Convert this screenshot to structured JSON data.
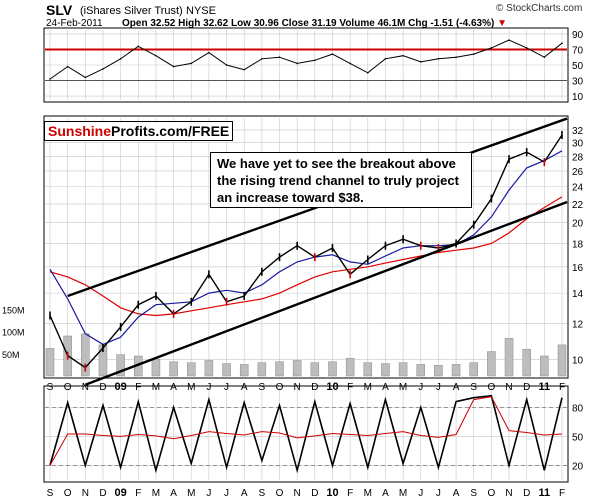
{
  "header": {
    "symbol": "SLV",
    "name": "(iShares Silver Trust)",
    "exchange": "NYSE",
    "date": "24-Feb-2011",
    "open_label": "Open",
    "open": "32.52",
    "high_label": "High",
    "high": "32.62",
    "low_label": "Low",
    "low": "30.96",
    "close_label": "Close",
    "close": "31.19",
    "volume_label": "Volume",
    "volume": "46.1M",
    "chg_label": "Chg",
    "chg": "-1.51 (-4.63%)",
    "watermark": "© StockCharts.com"
  },
  "logo": {
    "part1": "Sunshine",
    "part2": " Profits.com/FREE"
  },
  "annotation": {
    "line1": "We have yet to see the breakout above",
    "line2": "the rising trend channel to truly project",
    "line3": "an increase toward $38."
  },
  "colors": {
    "accent": "#cc0000",
    "ma_short": "#1a1aa0",
    "ma_long": "#e00000",
    "price_up": "#000000",
    "price_down": "#cc0000"
  },
  "chart_data": [
    {
      "type": "line",
      "panel": "rsi",
      "y_ticks": [
        10,
        30,
        50,
        70,
        90
      ],
      "ylim": [
        5,
        95
      ],
      "reference_lines": [
        70,
        30
      ],
      "x": [
        "S",
        "O",
        "N",
        "D",
        "09",
        "F",
        "M",
        "A",
        "M",
        "J",
        "J",
        "A",
        "S",
        "O",
        "N",
        "D",
        "10",
        "F",
        "M",
        "A",
        "M",
        "J",
        "J",
        "A",
        "S",
        "O",
        "N",
        "D",
        "11",
        "F"
      ],
      "values": [
        32,
        48,
        34,
        45,
        58,
        74,
        62,
        48,
        52,
        66,
        50,
        44,
        58,
        60,
        52,
        56,
        64,
        52,
        40,
        58,
        62,
        54,
        58,
        60,
        64,
        72,
        82,
        72,
        60,
        78
      ]
    },
    {
      "type": "line",
      "panel": "price",
      "scale": "log",
      "y_ticks": [
        10,
        12,
        14,
        16,
        18,
        20,
        22,
        24,
        26,
        28,
        30,
        32
      ],
      "ylim": [
        9.2,
        34
      ],
      "volume_ticks": [
        "150M",
        "100M",
        "50M"
      ],
      "x_labels": [
        "S",
        "O",
        "N",
        "D",
        "09",
        "F",
        "M",
        "A",
        "M",
        "J",
        "J",
        "A",
        "S",
        "O",
        "N",
        "D",
        "10",
        "F",
        "M",
        "A",
        "M",
        "J",
        "J",
        "A",
        "S",
        "O",
        "N",
        "D",
        "11",
        "F"
      ],
      "price": [
        12.5,
        10.2,
        9.6,
        10.6,
        11.8,
        13.2,
        13.8,
        12.6,
        13.4,
        15.4,
        13.4,
        13.8,
        15.6,
        16.8,
        17.8,
        16.8,
        17.6,
        15.4,
        16.6,
        17.8,
        18.4,
        17.8,
        17.6,
        18.0,
        19.8,
        22.6,
        27.6,
        28.6,
        27.2,
        31.19
      ],
      "ma_short": [
        15.8,
        13.6,
        11.4,
        10.8,
        11.2,
        12.4,
        13.2,
        13.3,
        13.4,
        14.0,
        14.2,
        14.0,
        14.6,
        15.6,
        16.4,
        16.8,
        17.0,
        16.4,
        16.2,
        16.9,
        17.6,
        17.8,
        17.8,
        17.9,
        18.8,
        20.6,
        23.6,
        26.4,
        27.4,
        28.8
      ],
      "ma_long": [
        15.6,
        15.2,
        14.6,
        13.8,
        13.0,
        12.6,
        12.5,
        12.6,
        12.8,
        13.0,
        13.2,
        13.4,
        13.6,
        14.0,
        14.6,
        15.2,
        15.6,
        15.8,
        16.0,
        16.3,
        16.6,
        16.9,
        17.2,
        17.4,
        17.6,
        18.0,
        19.0,
        20.4,
        21.6,
        22.8
      ],
      "volume_M": [
        62,
        90,
        95,
        70,
        48,
        45,
        38,
        32,
        30,
        35,
        28,
        26,
        30,
        32,
        35,
        30,
        32,
        40,
        30,
        28,
        30,
        26,
        24,
        26,
        30,
        55,
        85,
        60,
        45,
        70
      ],
      "channel_upper": {
        "start": [
          "O",
          13.8
        ],
        "end": [
          "F",
          33.6
        ]
      },
      "channel_lower": {
        "start": [
          "N",
          8.8
        ],
        "end": [
          "F",
          22.0
        ]
      }
    },
    {
      "type": "line",
      "panel": "stochastic",
      "y_ticks": [
        20,
        50,
        80
      ],
      "ylim": [
        5,
        100
      ],
      "reference_lines": [
        80,
        20
      ],
      "x_labels": [
        "S",
        "O",
        "N",
        "D",
        "09",
        "F",
        "M",
        "A",
        "M",
        "J",
        "J",
        "A",
        "S",
        "O",
        "N",
        "D",
        "10",
        "F",
        "M",
        "A",
        "M",
        "J",
        "J",
        "A",
        "S",
        "O",
        "N",
        "D",
        "11",
        "F"
      ],
      "values": [
        20,
        85,
        20,
        82,
        18,
        86,
        15,
        80,
        22,
        88,
        18,
        85,
        25,
        82,
        15,
        86,
        20,
        84,
        18,
        88,
        22,
        80,
        18,
        86,
        90,
        92,
        20,
        88,
        15,
        90
      ]
    }
  ]
}
